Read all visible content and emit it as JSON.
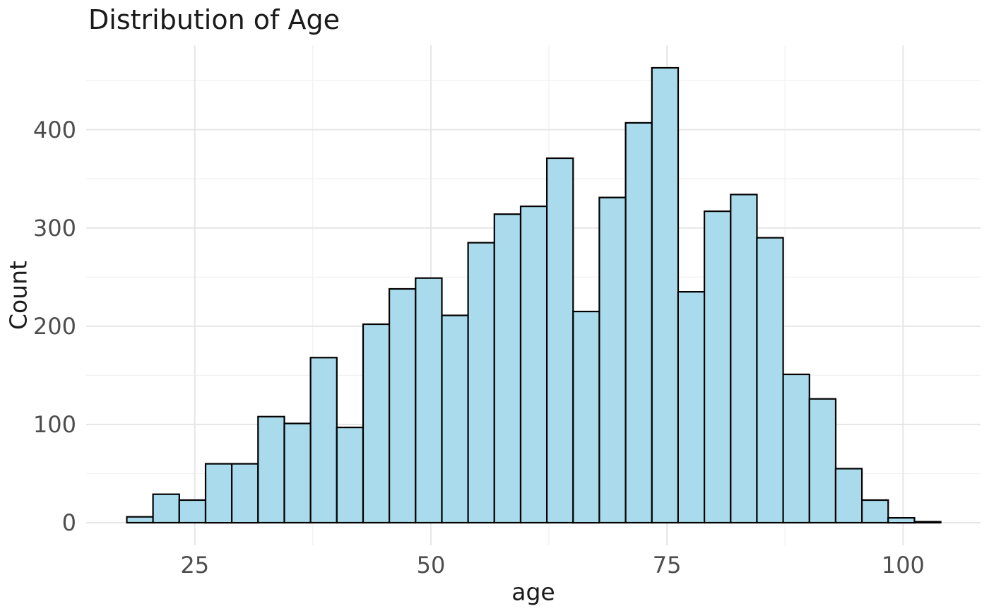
{
  "chart_data": {
    "type": "histogram",
    "title": "Distribution of Age",
    "xlabel": "age",
    "ylabel": "Count",
    "bin_start": 17.8,
    "bin_width": 2.78,
    "counts": [
      6,
      29,
      23,
      60,
      60,
      108,
      101,
      168,
      97,
      202,
      238,
      249,
      211,
      285,
      314,
      322,
      371,
      215,
      331,
      407,
      463,
      235,
      317,
      334,
      290,
      151,
      126,
      55,
      23,
      5,
      1
    ],
    "x_ticks": [
      25,
      50,
      75,
      100
    ],
    "x_minor_ticks": [
      37.5,
      62.5,
      87.5
    ],
    "y_ticks": [
      0,
      100,
      200,
      300,
      400
    ],
    "y_minor_ticks": [
      50,
      150,
      250,
      350,
      450
    ],
    "xlim": [
      13.5,
      108.2
    ],
    "ylim": [
      -23,
      486
    ],
    "grid": "on",
    "legend": "none",
    "colors": {
      "bar_fill": "#aadbec",
      "bar_stroke": "#000000",
      "grid_major": "#e6e6e6",
      "grid_minor": "#f2f2f2",
      "tick_label": "#4d4d4d",
      "axis_label": "#1a1a1a",
      "title": "#1a1a1a",
      "background": "#ffffff"
    }
  }
}
